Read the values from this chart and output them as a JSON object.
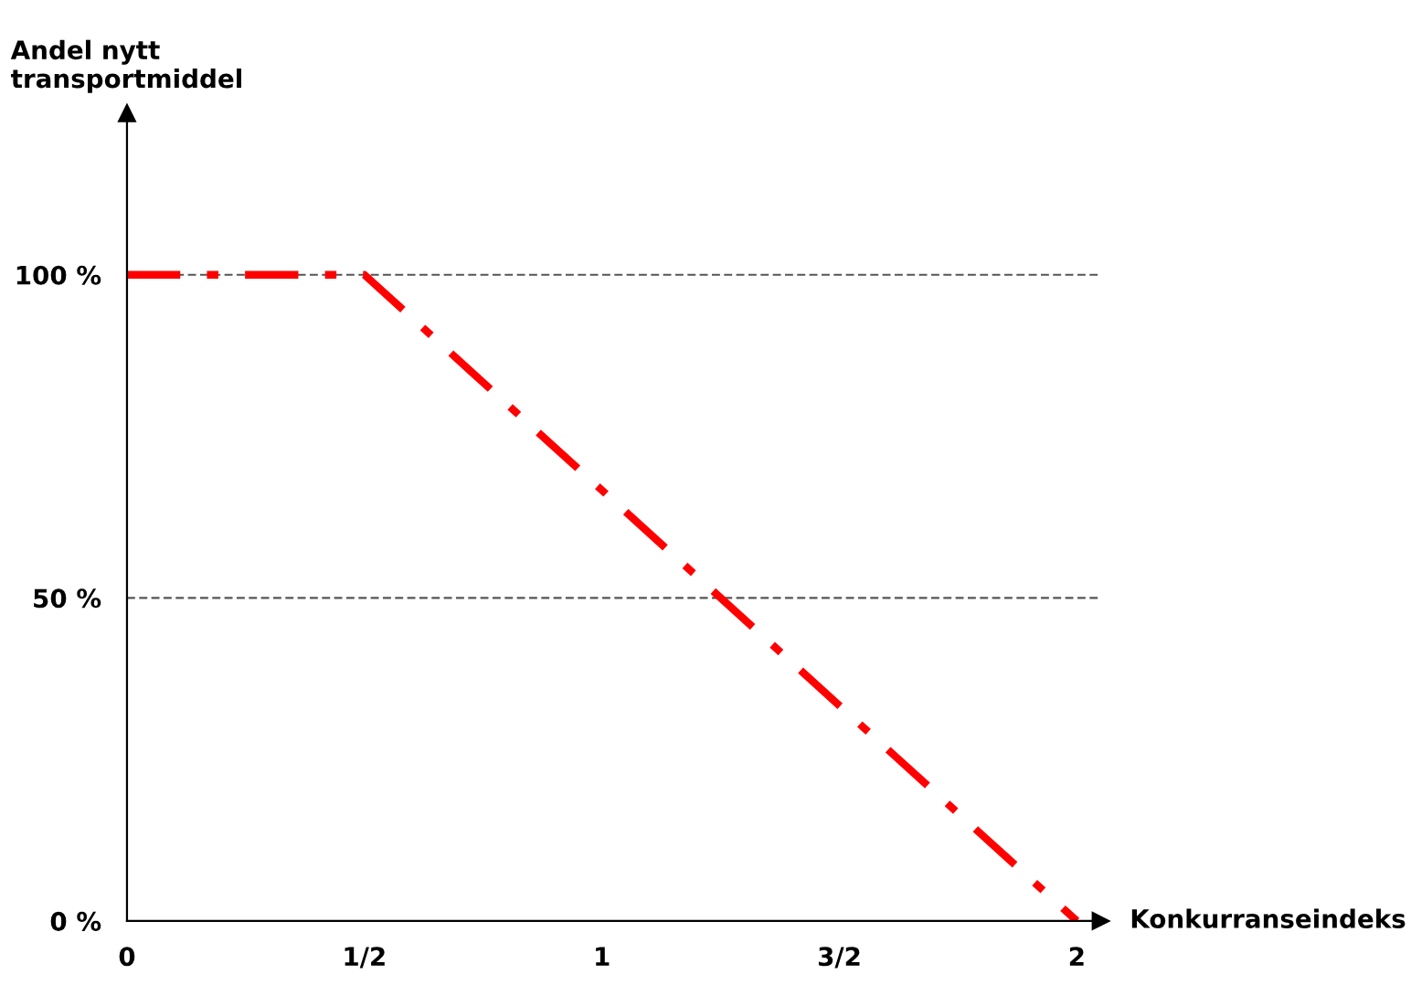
{
  "chart_data": {
    "type": "line",
    "xlabel": "Konkurranseindeks",
    "ylabel": "Andel nytt\ntransportmiddel",
    "x": [
      0,
      0.5,
      2
    ],
    "series": [
      {
        "color": "#ff0000",
        "values": [
          100,
          100,
          0
        ]
      }
    ],
    "xlim": [
      0,
      2.05
    ],
    "ylim": [
      0,
      125
    ],
    "xticks": [
      0,
      {
        "value": 0.5,
        "label": "1/2"
      },
      1,
      {
        "value": 1.5,
        "label": "3/2"
      },
      2
    ],
    "yticks": [
      {
        "value": 0,
        "label": "0 %"
      },
      {
        "value": 50,
        "label": "50 %"
      },
      {
        "value": 100,
        "label": "100 %"
      }
    ],
    "ref_lines": [
      {
        "axis": "y",
        "value": 100,
        "label": null,
        "color": "#555555",
        "line_style": "dashed"
      },
      {
        "axis": "y",
        "value": 50,
        "label": null,
        "color": "#555555",
        "line_style": "dashed"
      }
    ],
    "grid": false,
    "legend": false,
    "marker": "none",
    "line_style": "dashed"
  }
}
